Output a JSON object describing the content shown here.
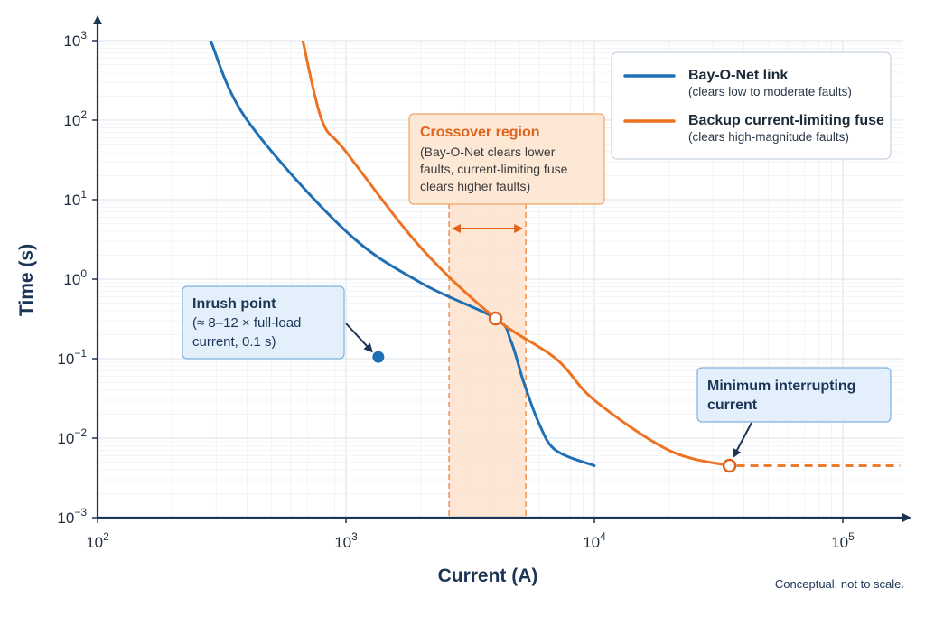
{
  "chart_data": {
    "type": "line",
    "xlabel": "Current (A)",
    "ylabel": "Time (s)",
    "x_scale": "log",
    "y_scale": "log",
    "xlim": [
      100,
      180000
    ],
    "ylim": [
      0.001,
      1000
    ],
    "x_ticks": [
      {
        "value": 100,
        "mant": "10",
        "exp": "2"
      },
      {
        "value": 1000,
        "mant": "10",
        "exp": "3"
      },
      {
        "value": 10000,
        "mant": "10",
        "exp": "4"
      },
      {
        "value": 100000,
        "mant": "10",
        "exp": "5"
      }
    ],
    "y_ticks": [
      {
        "value": 0.001,
        "mant": "10",
        "exp": "−3"
      },
      {
        "value": 0.01,
        "mant": "10",
        "exp": "−2"
      },
      {
        "value": 0.1,
        "mant": "10",
        "exp": "−1"
      },
      {
        "value": 1,
        "mant": "10",
        "exp": "0"
      },
      {
        "value": 10,
        "mant": "10",
        "exp": "1"
      },
      {
        "value": 100,
        "mant": "10",
        "exp": "2"
      },
      {
        "value": 1000,
        "mant": "10",
        "exp": "3"
      }
    ],
    "grid": true,
    "legend_position": "top-right",
    "series": [
      {
        "name": "Bay-O-Net link",
        "description": "(clears low to moderate faults)",
        "color": "#1f6fb5",
        "points": [
          [
            285,
            1000
          ],
          [
            400,
            100
          ],
          [
            1000,
            4
          ],
          [
            2000,
            0.9
          ],
          [
            4000,
            0.32
          ],
          [
            4600,
            0.17
          ],
          [
            5200,
            0.05
          ],
          [
            6000,
            0.015
          ],
          [
            7000,
            0.007
          ],
          [
            10000,
            0.0045
          ]
        ]
      },
      {
        "name": "Backup current-limiting fuse",
        "description": "(clears high-magnitude faults)",
        "color": "#ee7221",
        "points": [
          [
            670,
            1000
          ],
          [
            800,
            100
          ],
          [
            1000,
            40
          ],
          [
            2000,
            2.5
          ],
          [
            4000,
            0.32
          ],
          [
            7000,
            0.1
          ],
          [
            10000,
            0.03
          ],
          [
            20000,
            0.007
          ],
          [
            35000,
            0.0045
          ]
        ],
        "extension": {
          "style": "dashed",
          "points": [
            [
              35000,
              0.0045
            ],
            [
              170000,
              0.0045
            ]
          ]
        }
      }
    ],
    "crossover": {
      "x_range": [
        2600,
        5300
      ],
      "point": [
        4000,
        0.32
      ],
      "title": "Crossover region",
      "lines": [
        "(Bay-O-Net clears lower",
        "faults, current-limiting fuse",
        "clears higher faults)"
      ]
    },
    "inrush": {
      "point": [
        1350,
        0.105
      ],
      "title": "Inrush point",
      "lines": [
        "(≈ 8–12 × full-load",
        "current, 0.1 s)"
      ]
    },
    "min_interrupting": {
      "point": [
        35000,
        0.0045
      ],
      "lines": [
        "Minimum interrupting",
        "current"
      ]
    },
    "footnote": "Conceptual, not to scale."
  }
}
